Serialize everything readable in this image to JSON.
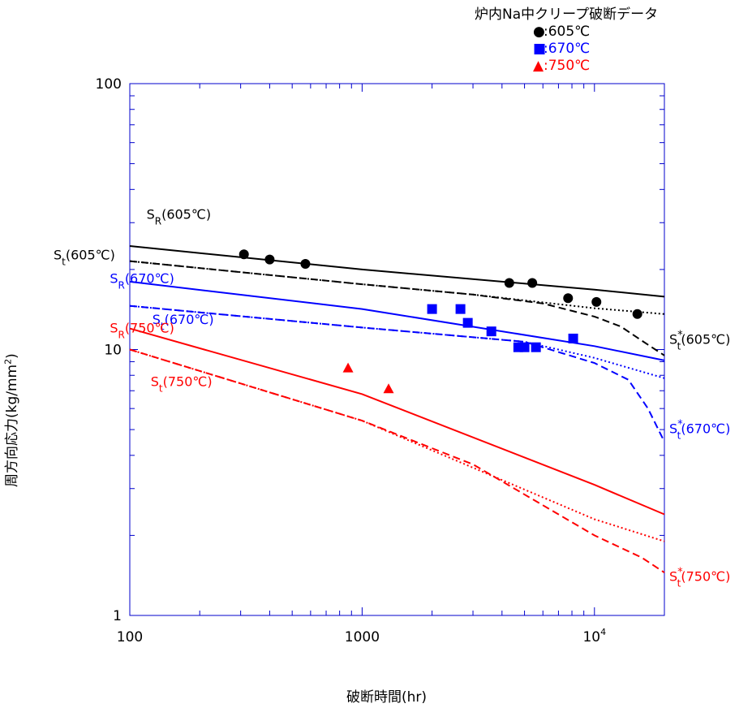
{
  "chart_data": {
    "type": "line",
    "xscale": "log",
    "yscale": "log",
    "xlim": [
      100,
      20000
    ],
    "ylim": [
      1,
      100
    ],
    "xlabel": "破断時間(hr)",
    "ylabel_prefix": "周方向応力(kg/mm",
    "ylabel_sup": "2",
    "ylabel_suffix": ")",
    "x_ticks": [
      {
        "v": 100,
        "base": "100",
        "sup": ""
      },
      {
        "v": 1000,
        "base": "1000",
        "sup": ""
      },
      {
        "v": 10000,
        "base": "10",
        "sup": "4"
      }
    ],
    "y_ticks": [
      {
        "v": 1,
        "label": "1"
      },
      {
        "v": 10,
        "label": "10"
      },
      {
        "v": 100,
        "label": "100"
      }
    ],
    "legend": {
      "title": "炉内Na中クリープ破断データ",
      "entries": [
        {
          "label": ":605℃",
          "marker": "circle",
          "color": "#000000"
        },
        {
          "label": ":670℃",
          "marker": "square",
          "color": "#0000ff"
        },
        {
          "label": ":750℃",
          "marker": "triangle",
          "color": "#ff0000"
        }
      ]
    },
    "colors": {
      "605": "#000000",
      "670": "#0000ff",
      "750": "#ff0000"
    },
    "series": [
      {
        "color": "#000000",
        "dash": "solid",
        "points": [
          [
            100,
            24.5
          ],
          [
            1000,
            20.0
          ],
          [
            10000,
            16.8
          ],
          [
            20000,
            15.8
          ]
        ]
      },
      {
        "color": "#000000",
        "dash": "dotted",
        "points": [
          [
            100,
            21.5
          ],
          [
            1000,
            17.6
          ],
          [
            3000,
            16.1
          ],
          [
            10000,
            14.3
          ],
          [
            20000,
            13.6
          ]
        ]
      },
      {
        "color": "#000000",
        "dash": "dashed",
        "points": [
          [
            100,
            21.5
          ],
          [
            1000,
            17.6
          ],
          [
            3000,
            16.1
          ],
          [
            6000,
            14.9
          ],
          [
            10000,
            13.3
          ],
          [
            13000,
            12.2
          ],
          [
            16000,
            10.8
          ],
          [
            20000,
            9.5
          ]
        ]
      },
      {
        "color": "#0000ff",
        "dash": "solid",
        "points": [
          [
            100,
            18.0
          ],
          [
            1000,
            14.2
          ],
          [
            10000,
            10.3
          ],
          [
            20000,
            9.1
          ]
        ]
      },
      {
        "color": "#0000ff",
        "dash": "dotted",
        "points": [
          [
            100,
            14.6
          ],
          [
            1000,
            12.1
          ],
          [
            5000,
            10.7
          ],
          [
            10000,
            9.3
          ],
          [
            20000,
            7.8
          ]
        ]
      },
      {
        "color": "#0000ff",
        "dash": "dashed",
        "points": [
          [
            100,
            14.6
          ],
          [
            1000,
            12.1
          ],
          [
            5000,
            10.7
          ],
          [
            10000,
            8.9
          ],
          [
            14000,
            7.7
          ],
          [
            17000,
            6.0
          ],
          [
            20000,
            4.5
          ]
        ]
      },
      {
        "color": "#ff0000",
        "dash": "solid",
        "points": [
          [
            100,
            12.0
          ],
          [
            1000,
            6.8
          ],
          [
            10000,
            3.1
          ],
          [
            20000,
            2.4
          ]
        ]
      },
      {
        "color": "#ff0000",
        "dash": "dotted",
        "points": [
          [
            100,
            10.0
          ],
          [
            1000,
            5.4
          ],
          [
            10000,
            2.3
          ],
          [
            20000,
            1.9
          ]
        ]
      },
      {
        "color": "#ff0000",
        "dash": "dashed",
        "points": [
          [
            100,
            10.0
          ],
          [
            1000,
            5.4
          ],
          [
            3000,
            3.7
          ],
          [
            10000,
            2.0
          ],
          [
            16000,
            1.65
          ],
          [
            20000,
            1.45
          ]
        ]
      }
    ],
    "scatter": [
      {
        "marker": "circle",
        "color": "#000000",
        "points": [
          [
            310,
            22.8
          ],
          [
            400,
            21.8
          ],
          [
            570,
            21.0
          ],
          [
            4300,
            17.8
          ],
          [
            5400,
            17.8
          ],
          [
            7700,
            15.6
          ],
          [
            10200,
            15.1
          ],
          [
            15300,
            13.6
          ]
        ]
      },
      {
        "marker": "square",
        "color": "#0000ff",
        "points": [
          [
            2000,
            14.2
          ],
          [
            2650,
            14.2
          ],
          [
            2850,
            12.6
          ],
          [
            3600,
            11.7
          ],
          [
            4700,
            10.2
          ],
          [
            5000,
            10.2
          ],
          [
            5600,
            10.2
          ],
          [
            8100,
            11.0
          ]
        ]
      },
      {
        "marker": "triangle",
        "color": "#ff0000",
        "points": [
          [
            870,
            8.5
          ],
          [
            1300,
            7.1
          ]
        ]
      }
    ],
    "curve_labels": [
      {
        "sym": "S",
        "sub": "R",
        "sup": "",
        "rest": "(605℃)",
        "color": "#000000",
        "x": 118,
        "y": 31,
        "anchor": "start"
      },
      {
        "sym": "S",
        "sub": "t",
        "sup": "",
        "rest": "(605℃)",
        "color": "#000000",
        "x": 82,
        "y": 21.8,
        "anchor": "start"
      },
      {
        "sym": "S",
        "sub": "R",
        "sup": "",
        "rest": "(670℃)",
        "color": "#0000ff",
        "x": 82,
        "y": 17.8,
        "anchor": "start"
      },
      {
        "sym": "S",
        "sub": "t",
        "sup": "",
        "rest": "(670℃)",
        "color": "#0000ff",
        "x": 125,
        "y": 12.5,
        "anchor": "start"
      },
      {
        "sym": "S",
        "sub": "R",
        "sup": "",
        "rest": "(750℃)",
        "color": "#ff0000",
        "x": 82,
        "y": 11.6,
        "anchor": "start"
      },
      {
        "sym": "S",
        "sub": "t",
        "sup": "",
        "rest": "(750℃)",
        "color": "#ff0000",
        "x": 123,
        "y": 7.3,
        "anchor": "start"
      },
      {
        "sym": "S",
        "sub": "t",
        "sup": "*",
        "rest": "(605℃)",
        "color": "#000000",
        "x": 20000,
        "y": 10.5,
        "anchor": "start"
      },
      {
        "sym": "S",
        "sub": "t",
        "sup": "*",
        "rest": "(670℃)",
        "color": "#0000ff",
        "x": 20000,
        "y": 4.85,
        "anchor": "start"
      },
      {
        "sym": "S",
        "sub": "t",
        "sup": "*",
        "rest": "(750℃)",
        "color": "#ff0000",
        "x": 20000,
        "y": 1.35,
        "anchor": "start"
      }
    ]
  }
}
